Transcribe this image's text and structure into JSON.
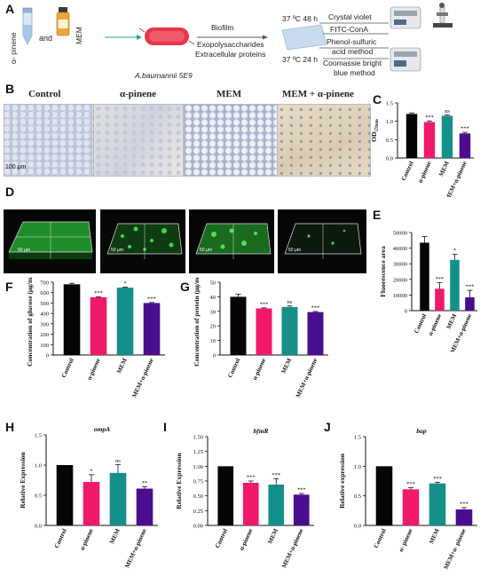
{
  "panels": {
    "A": "A",
    "B": "B",
    "C": "C",
    "D": "D",
    "E": "E",
    "F": "F",
    "G": "G",
    "H": "H",
    "I": "I",
    "J": "J"
  },
  "schematic": {
    "tube_label": "α- pinene",
    "and": "and",
    "bottle_label": "MEM",
    "strain": "A.baumannii 5E9",
    "biofilm": "Biofilm",
    "exopoly": "Exopolysaccharides",
    "extra_proteins": "Extracellular proteins",
    "cond1": "37 ºC 48 h",
    "cond2": "37 ºC 24 h",
    "assay1": "Crystal violet",
    "assay2": "FITC-ConA",
    "assay3a": "Phenol-sulfuric",
    "assay3b": "acid method",
    "assay4a": "Coomassie bright",
    "assay4b": "blue method"
  },
  "micrographs": {
    "titles": [
      "Control",
      "α-pinene",
      "MEM",
      "MEM + α-pinene"
    ],
    "scale": "100 μm"
  },
  "confocal": {
    "scale": "50 μm"
  },
  "colors": {
    "control": "#050505",
    "a_pinene": "#f0196a",
    "mem": "#148f8a",
    "combo": "#4a0d8e"
  },
  "chart_data": [
    {
      "panel": "C",
      "type": "bar",
      "categories": [
        "Control",
        "α-pinene",
        "MEM",
        "MEM+α-pinene"
      ],
      "values": [
        1.2,
        0.98,
        1.15,
        0.67
      ],
      "errors": [
        0.03,
        0.03,
        0.02,
        0.03
      ],
      "sig": [
        "",
        "***",
        "ns",
        "***"
      ],
      "ylabel": "OD570nm",
      "ylabel_main": "OD",
      "ylabel_sub": "570nm",
      "ylim": [
        0,
        1.5
      ],
      "yticks": [
        0,
        0.5,
        1.0,
        1.5
      ],
      "ytick_labels": [
        "0.0",
        "0.5",
        "1.0",
        "1.5"
      ]
    },
    {
      "panel": "E",
      "type": "bar",
      "categories": [
        "Control",
        "α-pinene",
        "MEM",
        "MEM+α-pinene"
      ],
      "values": [
        43500,
        14000,
        32500,
        8500
      ],
      "errors": [
        4000,
        4000,
        3500,
        4500
      ],
      "sig": [
        "",
        "***",
        "*",
        "***"
      ],
      "ylabel": "Fluorescence area",
      "ylim": [
        0,
        50000
      ],
      "yticks": [
        0,
        10000,
        20000,
        30000,
        40000,
        50000
      ],
      "ytick_labels": [
        "0",
        "10000",
        "20000",
        "30000",
        "40000",
        "50000"
      ]
    },
    {
      "panel": "F",
      "type": "bar",
      "categories": [
        "Control",
        "α-pinene",
        "MEM",
        "MEM+α-pinene"
      ],
      "values": [
        680,
        555,
        648,
        500
      ],
      "errors": [
        10,
        5,
        5,
        5
      ],
      "sig": [
        "",
        "***",
        "*",
        "***"
      ],
      "ylabel": "Concentration of glucose (μg/mL)",
      "ylim": [
        0,
        700
      ],
      "yticks": [
        0,
        100,
        200,
        300,
        400,
        500,
        600,
        700
      ],
      "ytick_labels": [
        "0",
        "100",
        "200",
        "300",
        "400",
        "500",
        "600",
        "700"
      ]
    },
    {
      "panel": "G",
      "type": "bar",
      "categories": [
        "Control",
        "α-pinene",
        "MEM",
        "MEM+α-pinene"
      ],
      "values": [
        40,
        32,
        33,
        29.5
      ],
      "errors": [
        1.8,
        0.4,
        0.7,
        0.4
      ],
      "sig": [
        "",
        "***",
        "ns",
        "***"
      ],
      "ylabel": "Concentration of protein (μg/mL)",
      "ylim": [
        0,
        50
      ],
      "yticks": [
        0,
        10,
        20,
        30,
        40,
        50
      ],
      "ytick_labels": [
        "0",
        "10",
        "20",
        "30",
        "40",
        "50"
      ]
    },
    {
      "panel": "H",
      "type": "bar",
      "title": "ompA",
      "categories": [
        "Control",
        "α-pinene",
        "MEM",
        "MEM+α-pinene"
      ],
      "values": [
        1.0,
        0.72,
        0.87,
        0.61
      ],
      "errors": [
        0,
        0.12,
        0.14,
        0.03
      ],
      "sig": [
        "",
        "*",
        "ns",
        "**"
      ],
      "ylabel": "Relative Expression",
      "ylim": [
        0,
        1.5
      ],
      "yticks": [
        0,
        0.5,
        1.0,
        1.5
      ],
      "ytick_labels": [
        "0.0",
        "0.5",
        "1.0",
        "1.5"
      ]
    },
    {
      "panel": "I",
      "type": "bar",
      "title": "bfmR",
      "categories": [
        "Control",
        "α-pinene",
        "MEM",
        "MEM+α-pinene"
      ],
      "values": [
        1.0,
        0.72,
        0.69,
        0.52
      ],
      "errors": [
        0,
        0.03,
        0.1,
        0.02
      ],
      "sig": [
        "",
        "***",
        "***",
        "***"
      ],
      "ylabel": "Relative Expression",
      "ylim": [
        0,
        1.5
      ],
      "yticks": [
        0,
        0.25,
        0.5,
        0.75,
        1.0,
        1.25,
        1.5
      ],
      "ytick_labels": [
        "0.00",
        "0.25",
        "0.50",
        "0.75",
        "1.00",
        "1.25",
        "1.50"
      ]
    },
    {
      "panel": "J",
      "type": "bar",
      "title": "bap",
      "categories": [
        "Control",
        "α- pinene",
        "MEM",
        "MEM+α- pinene"
      ],
      "values": [
        1.0,
        0.61,
        0.71,
        0.27
      ],
      "errors": [
        0,
        0.03,
        0.02,
        0.03
      ],
      "sig": [
        "",
        "***",
        "***",
        "***"
      ],
      "ylabel": "Relative expression",
      "ylim": [
        0,
        1.5
      ],
      "yticks": [
        0,
        0.5,
        1.0,
        1.5
      ],
      "ytick_labels": [
        "0.0",
        "0.5",
        "1.0",
        "1.5"
      ]
    }
  ]
}
